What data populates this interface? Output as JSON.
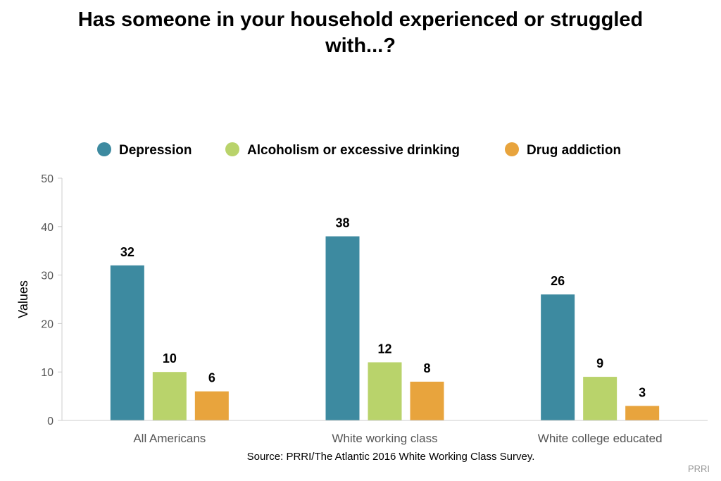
{
  "chart_data": {
    "type": "bar",
    "title": "Has someone in your household experienced or struggled with...?",
    "ylabel": "Values",
    "xlabel": "",
    "ylim": [
      0,
      50
    ],
    "yticks": [
      0,
      10,
      20,
      30,
      40,
      50
    ],
    "categories": [
      "All Americans",
      "White working class",
      "White college educated"
    ],
    "series": [
      {
        "name": "Depression",
        "color": "#3d8aa0",
        "values": [
          32,
          38,
          26
        ]
      },
      {
        "name": "Alcoholism or excessive drinking",
        "color": "#b9d36b",
        "values": [
          10,
          12,
          9
        ]
      },
      {
        "name": "Drug addiction",
        "color": "#e8a43d",
        "values": [
          6,
          8,
          3
        ]
      }
    ],
    "legend_position": "top-center",
    "grid": false,
    "data_labels": true
  },
  "source_note": "Source: PRRI/The Atlantic 2016 White Working Class Survey.",
  "credit": "PRRI"
}
